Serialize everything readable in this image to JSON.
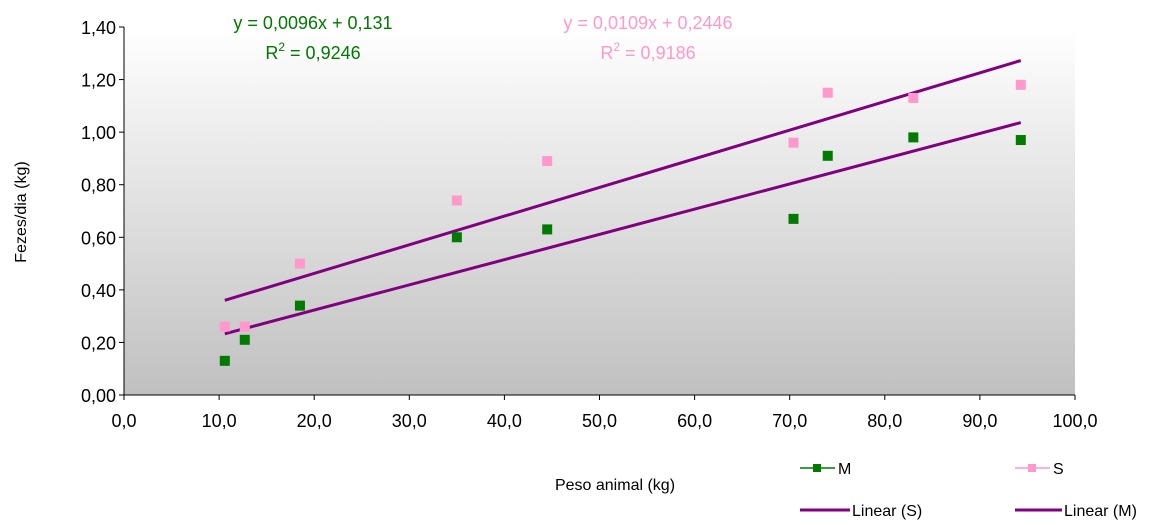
{
  "chart_data": {
    "type": "scatter",
    "title": "",
    "xlabel": "Peso animal (kg)",
    "ylabel": "Fezes/dia (kg)",
    "xlim": [
      0,
      100
    ],
    "ylim": [
      0,
      1.4
    ],
    "x_ticks": [
      "0,0",
      "10,0",
      "20,0",
      "30,0",
      "40,0",
      "50,0",
      "60,0",
      "70,0",
      "80,0",
      "90,0",
      "100,0"
    ],
    "y_ticks": [
      "0,00",
      "0,20",
      "0,40",
      "0,60",
      "0,80",
      "1,00",
      "1,20",
      "1,40"
    ],
    "grid": false,
    "legend_position": "bottom-right",
    "series": [
      {
        "name": "M",
        "color": "#007a00",
        "marker": "square",
        "x": [
          10.6,
          12.7,
          18.5,
          35.0,
          44.5,
          70.4,
          74.0,
          83.0,
          94.3
        ],
        "y": [
          0.13,
          0.21,
          0.34,
          0.6,
          0.63,
          0.67,
          0.91,
          0.98,
          0.97
        ]
      },
      {
        "name": "S",
        "color": "#ff99cc",
        "marker": "square",
        "x": [
          10.6,
          12.7,
          18.5,
          35.0,
          44.5,
          70.4,
          74.0,
          83.0,
          94.3
        ],
        "y": [
          0.26,
          0.26,
          0.5,
          0.74,
          0.89,
          0.96,
          1.15,
          1.13,
          1.18
        ]
      }
    ],
    "trendlines": [
      {
        "name": "Linear (S)",
        "color": "#800080",
        "slope": 0.0109,
        "intercept": 0.2446,
        "x_range": [
          10.6,
          94.3
        ]
      },
      {
        "name": "Linear (M)",
        "color": "#800080",
        "slope": 0.0096,
        "intercept": 0.131,
        "x_range": [
          10.6,
          94.3
        ]
      }
    ],
    "annotations": [
      {
        "series": "M",
        "equation": "y = 0,0096x + 0,131",
        "r2_label": "R",
        "r2_sup": "2",
        "r2_value": " = 0,9246",
        "color": "#007a00"
      },
      {
        "series": "S",
        "equation": "y = 0,0109x + 0,2446",
        "r2_label": "R",
        "r2_sup": "2",
        "r2_value": " = 0,9186",
        "color": "#ff99cc"
      }
    ],
    "legend": [
      {
        "label": "M",
        "kind": "marker",
        "color": "#007a00"
      },
      {
        "label": "S",
        "kind": "marker",
        "color": "#ff99cc"
      },
      {
        "label": "Linear (S)",
        "kind": "line",
        "color": "#800080"
      },
      {
        "label": "Linear (M)",
        "kind": "line",
        "color": "#800080"
      }
    ],
    "plot_gradient": [
      "#ffffff",
      "#c0c0c0"
    ]
  }
}
